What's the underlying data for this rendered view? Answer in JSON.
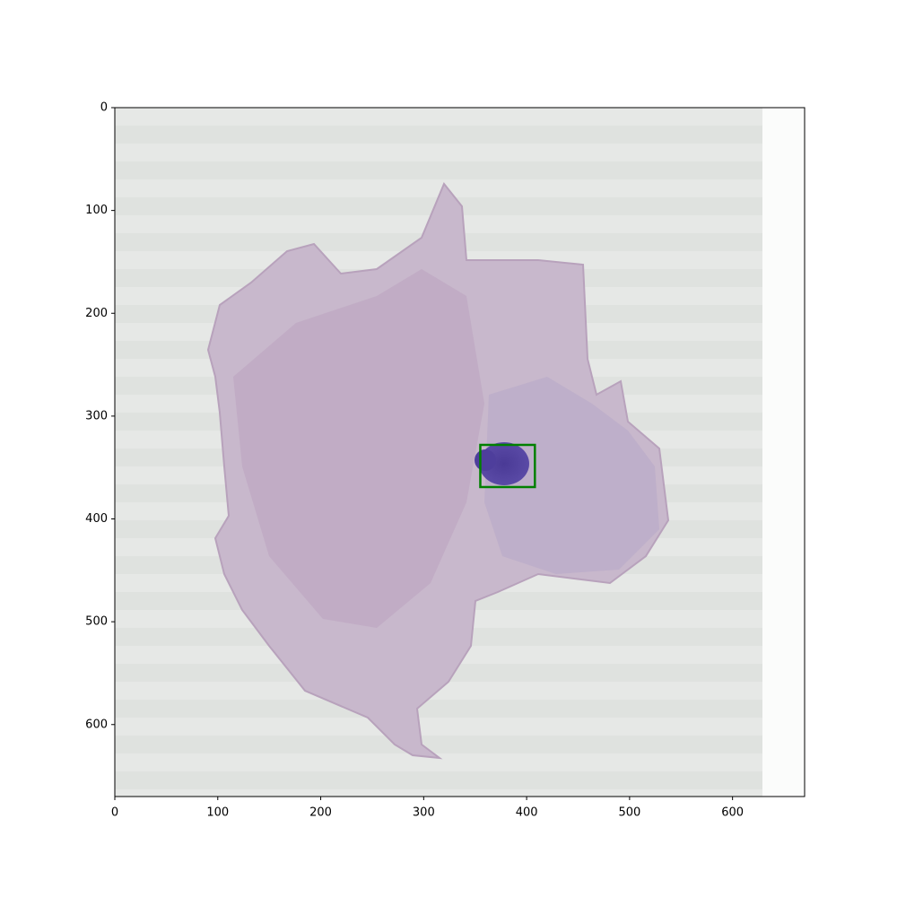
{
  "chart_data": {
    "type": "image",
    "xlim": [
      0,
      670
    ],
    "ylim": [
      670,
      0
    ],
    "xticks": [
      0,
      100,
      200,
      300,
      400,
      500,
      600
    ],
    "yticks": [
      0,
      100,
      200,
      300,
      400,
      500,
      600
    ],
    "boxes": [
      {
        "x": [
          355,
          408
        ],
        "y": [
          328,
          369
        ],
        "color": "#008000"
      }
    ]
  }
}
